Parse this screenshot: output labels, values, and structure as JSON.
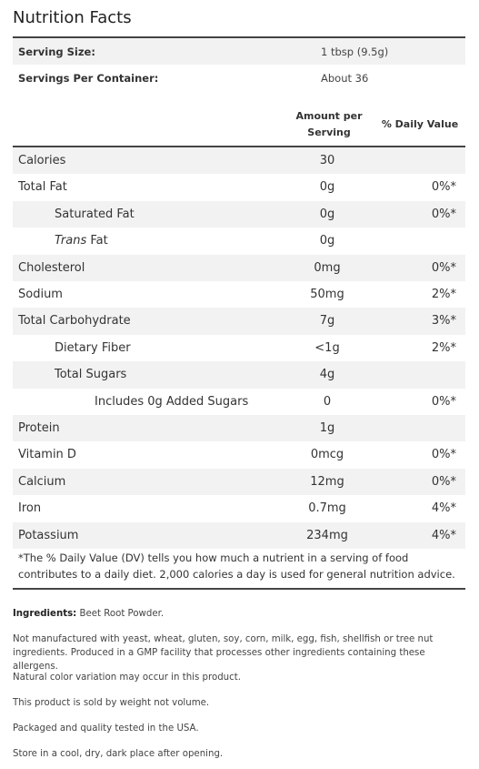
{
  "title": "Nutrition Facts",
  "serving": {
    "size_label": "Serving Size:",
    "size_value": "1 tbsp (9.5g)",
    "per_container_label": "Servings Per Container:",
    "per_container_value": "About 36"
  },
  "columns": {
    "amount_line1": "Amount per",
    "amount_line2": "Serving",
    "dv": "% Daily Value"
  },
  "nutrients": [
    {
      "name": "Calories",
      "amount": "30",
      "dv": ""
    },
    {
      "name": "Total Fat",
      "amount": "0g",
      "dv": "0%*"
    },
    {
      "name": "Saturated Fat",
      "amount": "0g",
      "dv": "0%*"
    },
    {
      "name_italic": "Trans",
      "name_rest": " Fat",
      "amount": "0g",
      "dv": ""
    },
    {
      "name": "Cholesterol",
      "amount": "0mg",
      "dv": "0%*"
    },
    {
      "name": "Sodium",
      "amount": "50mg",
      "dv": "2%*"
    },
    {
      "name": "Total Carbohydrate",
      "amount": "7g",
      "dv": "3%*"
    },
    {
      "name": "Dietary Fiber",
      "amount": "<1g",
      "dv": "2%*"
    },
    {
      "name": "Total Sugars",
      "amount": "4g",
      "dv": ""
    },
    {
      "name": "Includes 0g Added Sugars",
      "amount": "0",
      "dv": "0%*"
    },
    {
      "name": "Protein",
      "amount": "1g",
      "dv": ""
    },
    {
      "name": "Vitamin D",
      "amount": "0mcg",
      "dv": "0%*"
    },
    {
      "name": "Calcium",
      "amount": "12mg",
      "dv": "0%*"
    },
    {
      "name": "Iron",
      "amount": "0.7mg",
      "dv": "4%*"
    },
    {
      "name": "Potassium",
      "amount": "234mg",
      "dv": "4%*"
    }
  ],
  "footnote": "*The % Daily Value (DV) tells you how much a nutrient in a serving of food contributes to a daily diet. 2,000 calories a day is used for general nutrition advice.",
  "ingredients": {
    "label": "Ingredients:",
    "text": " Beet Root Powder."
  },
  "notes": [
    "Not manufactured with yeast, wheat, gluten, soy, corn, milk, egg, fish, shellfish or tree nut ingredients. Produced in a GMP facility that processes other ingredients containing these allergens.",
    "Natural color variation may occur in this product.",
    "This product is sold by weight not volume.",
    "Packaged and quality tested in the USA.",
    "Store in a cool, dry, dark place after opening."
  ]
}
